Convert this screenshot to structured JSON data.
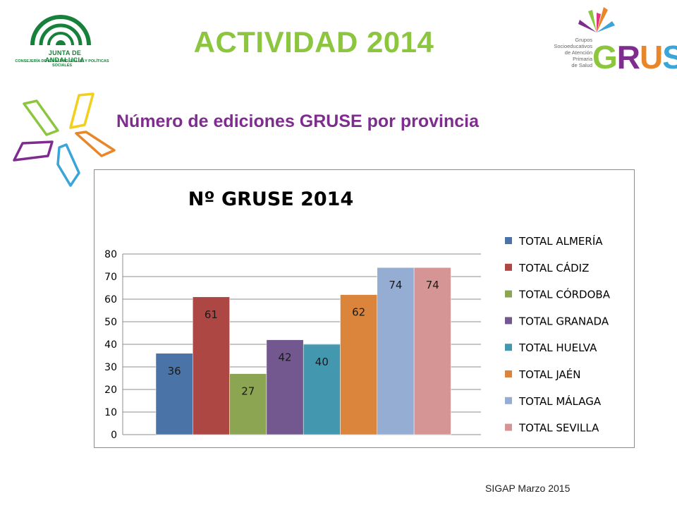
{
  "header": {
    "title": "ACTIVIDAD 2014",
    "subtitle": "Número de ediciones GRUSE por provincia"
  },
  "logo_left": {
    "name": "JUNTA DE ANDALUCIA",
    "department": "CONSEJERÍA DE IGUALDAD, SALUD Y POLÍTICAS SOCIALES",
    "icon": "junta-andalucia-emblem"
  },
  "logo_right": {
    "description_lines": [
      "Grupos",
      "Socioeducativos",
      "de Atención",
      "Primaria",
      "de Salud"
    ],
    "word": "GRUSE",
    "letter_colors": [
      "#8cc63f",
      "#7e2d8f",
      "#e8872a",
      "#3aa5d8",
      "#e0347a"
    ]
  },
  "chart_data": {
    "type": "bar",
    "title": "Nº GRUSE 2014",
    "ylim": [
      0,
      80
    ],
    "yticks": [
      0,
      10,
      20,
      30,
      40,
      50,
      60,
      70,
      80
    ],
    "grid": true,
    "legend_position": "right",
    "series": [
      {
        "name": "TOTAL ALMERÍA",
        "value": 36,
        "color": "#4a73a8"
      },
      {
        "name": "TOTAL CÁDIZ",
        "value": 61,
        "color": "#ac4744"
      },
      {
        "name": "TOTAL CÓRDOBA",
        "value": 27,
        "color": "#8ca552"
      },
      {
        "name": "TOTAL GRANADA",
        "value": 42,
        "color": "#735890"
      },
      {
        "name": "TOTAL HUELVA",
        "value": 40,
        "color": "#4398b0"
      },
      {
        "name": "TOTAL JAÉN",
        "value": 62,
        "color": "#da843c"
      },
      {
        "name": "TOTAL MÁLAGA",
        "value": 74,
        "color": "#95acd3"
      },
      {
        "name": "TOTAL SEVILLA",
        "value": 74,
        "color": "#d49594"
      }
    ]
  },
  "footer": {
    "text": "SIGAP Marzo 2015"
  },
  "colors": {
    "title_green": "#8cc63f",
    "subtitle_purple": "#7e2d8f",
    "junta_green": "#17803a"
  }
}
